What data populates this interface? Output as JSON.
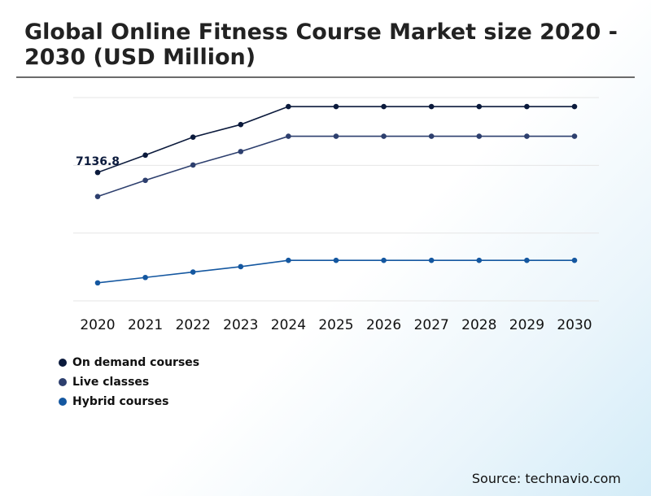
{
  "chart_data": {
    "type": "line",
    "title": "Global Online Fitness Course Market size 2020 - 2030 (USD Million)",
    "x": [
      "2020",
      "2021",
      "2022",
      "2023",
      "2024",
      "2025",
      "2026",
      "2027",
      "2028",
      "2029",
      "2030"
    ],
    "series": [
      {
        "name": "On demand courses",
        "color": "#0b1a3c",
        "values": [
          7136.8,
          8100,
          9100,
          9800,
          10800,
          10800,
          10800,
          10800,
          10800,
          10800,
          10800
        ]
      },
      {
        "name": "Live classes",
        "color": "#2d3f6e",
        "values": [
          5800,
          6700,
          7550,
          8300,
          9150,
          9150,
          9150,
          9150,
          9150,
          9150,
          9150
        ]
      },
      {
        "name": "Hybrid courses",
        "color": "#1457a0",
        "values": [
          1000,
          1300,
          1600,
          1900,
          2250,
          2250,
          2250,
          2250,
          2250,
          2250,
          2250
        ]
      }
    ],
    "data_labels": [
      {
        "series": 0,
        "index": 0,
        "text": "7136.8"
      }
    ],
    "ylim": [
      0,
      11300
    ],
    "grid": true,
    "legend_position": "bottom-left"
  },
  "source": "Source: technavio.com"
}
